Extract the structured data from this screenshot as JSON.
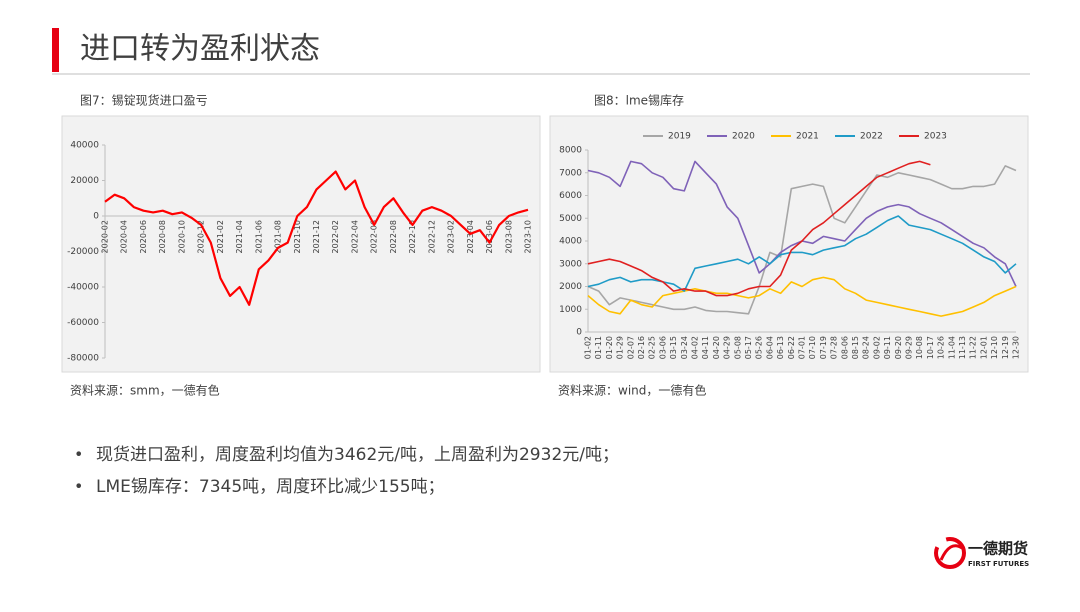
{
  "header": {
    "title": "进口转为盈利状态"
  },
  "chart_data": [
    {
      "type": "line",
      "title": "图7：锡锭现货进口盈亏",
      "source": "资料来源：smm，一德有色",
      "categories": [
        "2020-02",
        null,
        "2020-04",
        null,
        "2020-06",
        null,
        "2020-08",
        null,
        "2020-10",
        null,
        "2020-12",
        null,
        "2021-02",
        null,
        "2021-04",
        null,
        "2021-06",
        null,
        "2021-08",
        null,
        "2021-10",
        null,
        "2021-12",
        null,
        "2022-02",
        null,
        "2022-04",
        null,
        "2022-06",
        null,
        "2022-08",
        null,
        "2022-10",
        null,
        "2022-12",
        null,
        "2023-02",
        null,
        "2023-04",
        null,
        "2023-06",
        null,
        "2023-08",
        null,
        "2023-10"
      ],
      "values": [
        8000,
        12000,
        10000,
        5000,
        3000,
        2000,
        3000,
        1000,
        2000,
        -1000,
        -5000,
        -15000,
        -35000,
        -45000,
        -40000,
        -50000,
        -30000,
        -25000,
        -18000,
        -15000,
        0,
        5000,
        15000,
        20000,
        25000,
        15000,
        20000,
        5000,
        -5000,
        5000,
        10000,
        2000,
        -5000,
        3000,
        5000,
        3000,
        0,
        -5000,
        -10000,
        -8000,
        -15000,
        -5000,
        0,
        2000,
        3500
      ],
      "color": "#ff0000",
      "ylim": [
        -80000,
        40000
      ],
      "yticks": [
        -80000,
        -60000,
        -40000,
        -20000,
        0,
        20000,
        40000
      ]
    },
    {
      "type": "line",
      "title": "图8：lme锡库存",
      "source": "资料来源：wind，一德有色",
      "categories": [
        "01-02",
        "01-11",
        "01-20",
        "01-29",
        "02-07",
        "02-16",
        "02-25",
        "03-06",
        "03-15",
        "03-24",
        "04-02",
        "04-11",
        "04-20",
        "04-29",
        "05-08",
        "05-17",
        "05-26",
        "06-04",
        "06-13",
        "06-22",
        "07-01",
        "07-10",
        "07-19",
        "07-28",
        "08-06",
        "08-15",
        "08-24",
        "09-02",
        "09-11",
        "09-20",
        "09-29",
        "10-08",
        "10-17",
        "10-26",
        "11-04",
        "11-13",
        "11-22",
        "12-01",
        "12-10",
        "12-19",
        "12-30"
      ],
      "series": [
        {
          "name": "2019",
          "color": "#a6a6a6",
          "values": [
            2000,
            1800,
            1200,
            1500,
            1400,
            1300,
            1200,
            1100,
            1000,
            1000,
            1100,
            950,
            900,
            900,
            850,
            800,
            2000,
            3500,
            3300,
            6300,
            6400,
            6500,
            6400,
            5000,
            4800,
            5500,
            6200,
            6900,
            6800,
            7000,
            6900,
            6800,
            6700,
            6500,
            6300,
            6300,
            6400,
            6400,
            6500,
            7300,
            7100
          ]
        },
        {
          "name": "2020",
          "color": "#7f62b8",
          "values": [
            7100,
            7000,
            6800,
            6400,
            7500,
            7400,
            7000,
            6800,
            6300,
            6200,
            7500,
            7000,
            6500,
            5500,
            5000,
            3800,
            2600,
            3000,
            3500,
            3800,
            4000,
            3900,
            4200,
            4100,
            4000,
            4500,
            5000,
            5300,
            5500,
            5600,
            5500,
            5200,
            5000,
            4800,
            4500,
            4200,
            3900,
            3700,
            3300,
            3000,
            2000
          ]
        },
        {
          "name": "2021",
          "color": "#ffc000",
          "values": [
            1600,
            1200,
            900,
            800,
            1400,
            1200,
            1100,
            1600,
            1700,
            1800,
            1900,
            1800,
            1700,
            1700,
            1600,
            1500,
            1600,
            1900,
            1700,
            2200,
            2000,
            2300,
            2400,
            2300,
            1900,
            1700,
            1400,
            1300,
            1200,
            1100,
            1000,
            900,
            800,
            700,
            800,
            900,
            1100,
            1300,
            1600,
            1800,
            2000
          ]
        },
        {
          "name": "2022",
          "color": "#1f9bc7",
          "values": [
            2000,
            2100,
            2300,
            2400,
            2200,
            2300,
            2300,
            2200,
            2100,
            1800,
            2800,
            2900,
            3000,
            3100,
            3200,
            3000,
            3300,
            3000,
            3400,
            3500,
            3500,
            3400,
            3600,
            3700,
            3800,
            4100,
            4300,
            4600,
            4900,
            5100,
            4700,
            4600,
            4500,
            4300,
            4100,
            3900,
            3600,
            3300,
            3100,
            2600,
            3000
          ]
        },
        {
          "name": "2023",
          "color": "#e02020",
          "values": [
            3000,
            3100,
            3200,
            3100,
            2900,
            2700,
            2400,
            2200,
            1800,
            1900,
            1800,
            1800,
            1600,
            1600,
            1700,
            1900,
            2000,
            2000,
            2500,
            3600,
            4000,
            4500,
            4800,
            5200,
            5600,
            6000,
            6400,
            6800,
            7000,
            7200,
            7400,
            7500,
            7350,
            null,
            null,
            null,
            null,
            null,
            null,
            null,
            null
          ]
        }
      ],
      "ylim": [
        0,
        8000
      ],
      "yticks": [
        0,
        1000,
        2000,
        3000,
        4000,
        5000,
        6000,
        7000,
        8000
      ],
      "legend": "top"
    }
  ],
  "bullets": [
    "现货进口盈利，周度盈利均值为3462元/吨，上周盈利为2932元/吨；",
    "LME锡库存：7345吨，周度环比减少155吨；"
  ],
  "logo": {
    "name": "一德期货",
    "subtitle": "FIRST FUTURES"
  }
}
